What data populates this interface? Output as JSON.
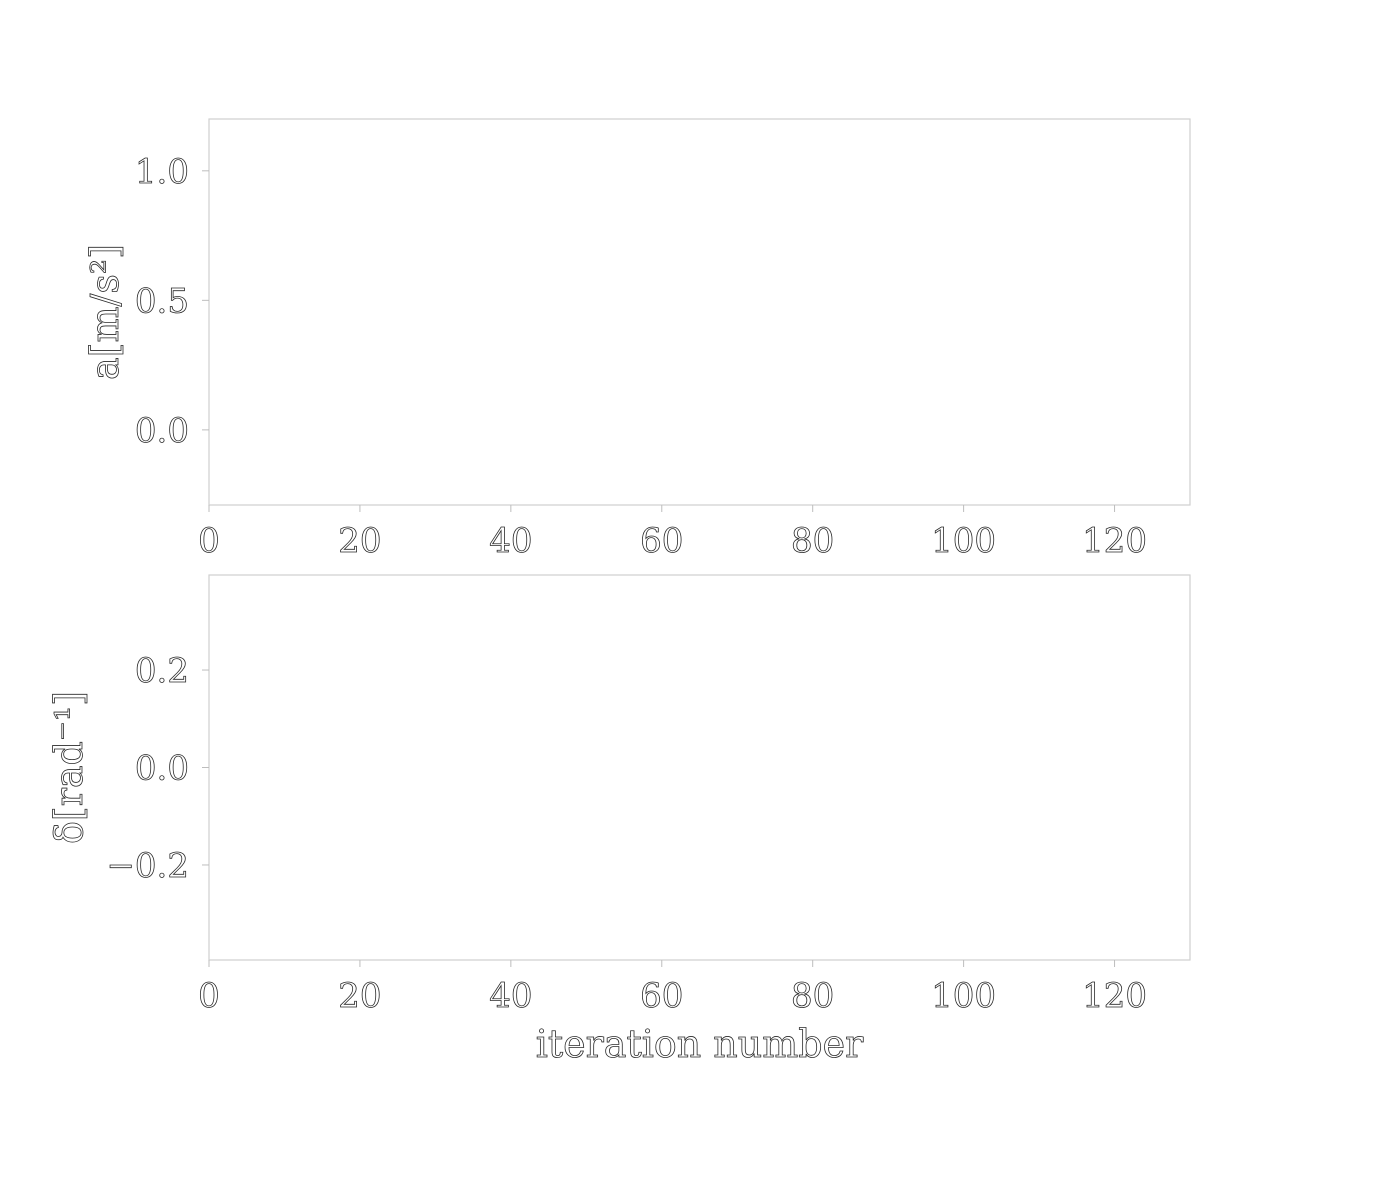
{
  "chart_data": [
    {
      "type": "line",
      "title": "",
      "xlabel": "",
      "ylabel": "a[m/s²]",
      "xlim": [
        0,
        130
      ],
      "ylim": [
        -0.29,
        1.2
      ],
      "xticks": [
        0,
        20,
        40,
        60,
        80,
        100,
        120
      ],
      "xtick_labels": [
        "0",
        "20",
        "40",
        "60",
        "80",
        "100",
        "120"
      ],
      "yticks": [
        0.0,
        0.5,
        1.0
      ],
      "ytick_labels": [
        "0.0",
        "0.5",
        "1.0"
      ],
      "grid": false,
      "series": []
    },
    {
      "type": "line",
      "title": "",
      "xlabel": "iteration number",
      "ylabel": "δ[rad⁻¹]",
      "xlim": [
        0,
        130
      ],
      "ylim": [
        -0.395,
        0.395
      ],
      "xticks": [
        0,
        20,
        40,
        60,
        80,
        100,
        120
      ],
      "xtick_labels": [
        "0",
        "20",
        "40",
        "60",
        "80",
        "100",
        "120"
      ],
      "yticks": [
        -0.2,
        0.0,
        0.2
      ],
      "ytick_labels": [
        "−0.2",
        "0.0",
        "0.2"
      ],
      "grid": false,
      "series": []
    }
  ]
}
